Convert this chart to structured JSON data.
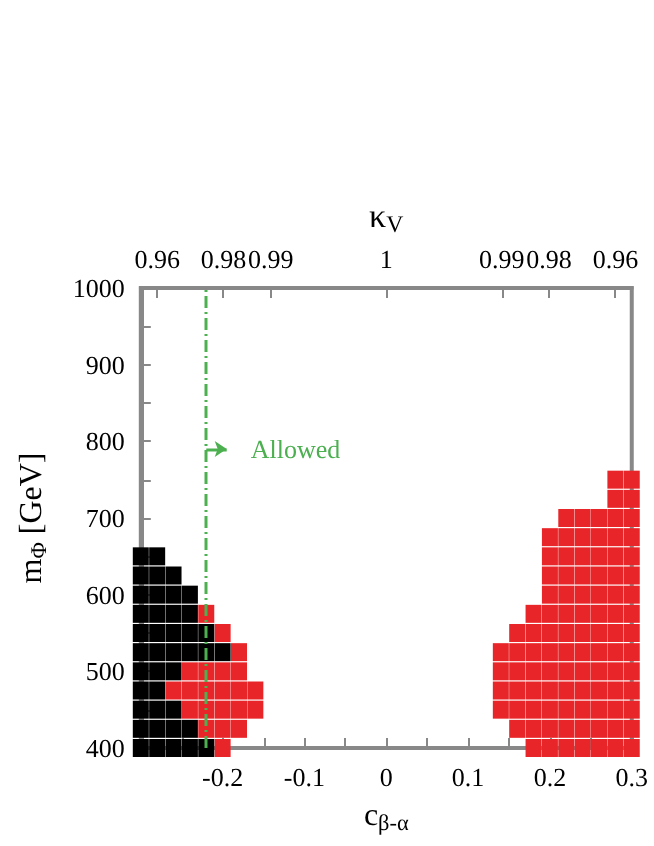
{
  "chart_data": {
    "type": "scatter",
    "xlabel": "c$_{β-α}$",
    "ylabel": "m$_{Φ}$ [GeV]",
    "x2label": "κ$_{V}$",
    "xlim": [
      -0.3,
      0.3
    ],
    "ylim": [
      400,
      1000
    ],
    "xticks": [
      {
        "value": -0.3,
        "label": null
      },
      {
        "value": -0.25,
        "label": null
      },
      -0.2,
      {
        "value": -0.15,
        "label": null
      },
      -0.1,
      {
        "value": -0.05,
        "label": null
      },
      0,
      {
        "value": 0.05,
        "label": null
      },
      0.1,
      {
        "value": 0.15,
        "label": null
      },
      0.2,
      {
        "value": 0.25,
        "label": null
      },
      0.3
    ],
    "yticks": [
      400,
      {
        "value": 450,
        "label": null
      },
      500,
      {
        "value": 550,
        "label": null
      },
      600,
      {
        "value": 650,
        "label": null
      },
      700,
      {
        "value": 750,
        "label": null
      },
      800,
      {
        "value": 850,
        "label": null
      },
      900,
      {
        "value": 950,
        "label": null
      },
      1000
    ],
    "marker": "square",
    "ref_lines": [
      {
        "axis": "x",
        "value": -0.22,
        "label": null,
        "color": "#4caf50",
        "line_style": "dashed"
      }
    ],
    "annotations": [
      {
        "text": "Allowed",
        "x": -0.22,
        "y": 790
      },
      "0.96",
      "0.98",
      "0.99",
      "1",
      "0.99",
      "0.98",
      "0.96"
    ],
    "series": [
      {
        "color": "#e8262a",
        "x": [
          0.18,
          0.2,
          0.22,
          0.24,
          0.26,
          0.28,
          0.3,
          0.16,
          0.18,
          0.2,
          0.22,
          0.24,
          0.26,
          0.28,
          0.3,
          0.14,
          0.16,
          0.18,
          0.2,
          0.22,
          0.24,
          0.26,
          0.28,
          0.3,
          0.14,
          0.16,
          0.18,
          0.2,
          0.22,
          0.24,
          0.26,
          0.28,
          0.3,
          0.14,
          0.16,
          0.18,
          0.2,
          0.22,
          0.24,
          0.26,
          0.28,
          0.3,
          0.14,
          0.16,
          0.18,
          0.2,
          0.22,
          0.24,
          0.26,
          0.28,
          0.3,
          0.16,
          0.18,
          0.2,
          0.22,
          0.24,
          0.26,
          0.28,
          0.3,
          0.18,
          0.2,
          0.22,
          0.24,
          0.26,
          0.28,
          0.3,
          0.2,
          0.22,
          0.24,
          0.26,
          0.28,
          0.3,
          0.2,
          0.22,
          0.24,
          0.26,
          0.28,
          0.3,
          0.2,
          0.22,
          0.24,
          0.26,
          0.28,
          0.3,
          0.2,
          0.22,
          0.24,
          0.26,
          0.28,
          0.3,
          0.22,
          0.24,
          0.26,
          0.28,
          0.3,
          0.28,
          0.3,
          0.28,
          0.3,
          -0.2,
          -0.22,
          -0.2,
          -0.18,
          -0.24,
          -0.22,
          -0.2,
          -0.18,
          -0.16,
          -0.26,
          -0.24,
          -0.22,
          -0.2,
          -0.18,
          -0.16,
          -0.24,
          -0.22,
          -0.2,
          -0.18,
          -0.18,
          -0.2,
          -0.22
        ],
        "values": [
          400,
          400,
          400,
          400,
          400,
          400,
          400,
          425,
          425,
          425,
          425,
          425,
          425,
          425,
          425,
          450,
          450,
          450,
          450,
          450,
          450,
          450,
          450,
          450,
          475,
          475,
          475,
          475,
          475,
          475,
          475,
          475,
          475,
          500,
          500,
          500,
          500,
          500,
          500,
          500,
          500,
          500,
          525,
          525,
          525,
          525,
          525,
          525,
          525,
          525,
          525,
          550,
          550,
          550,
          550,
          550,
          550,
          550,
          550,
          575,
          575,
          575,
          575,
          575,
          575,
          575,
          600,
          600,
          600,
          600,
          600,
          600,
          625,
          625,
          625,
          625,
          625,
          625,
          650,
          650,
          650,
          650,
          650,
          650,
          675,
          675,
          675,
          675,
          675,
          675,
          700,
          700,
          700,
          700,
          700,
          725,
          725,
          750,
          750,
          400,
          425,
          425,
          425,
          450,
          450,
          450,
          450,
          450,
          475,
          475,
          475,
          475,
          475,
          475,
          500,
          500,
          500,
          500,
          525,
          550,
          575
        ]
      },
      {
        "color": "#000000",
        "x": [
          -0.3,
          -0.28,
          -0.26,
          -0.24,
          -0.22,
          -0.3,
          -0.28,
          -0.26,
          -0.24,
          -0.3,
          -0.28,
          -0.26,
          -0.3,
          -0.28,
          -0.3,
          -0.28,
          -0.26,
          -0.3,
          -0.28,
          -0.26,
          -0.24,
          -0.22,
          -0.2,
          -0.3,
          -0.28,
          -0.26,
          -0.24,
          -0.22,
          -0.3,
          -0.28,
          -0.26,
          -0.24,
          -0.3,
          -0.28,
          -0.26,
          -0.24,
          -0.3,
          -0.28,
          -0.26,
          -0.3,
          -0.28
        ],
        "values": [
          400,
          400,
          400,
          400,
          400,
          425,
          425,
          425,
          425,
          450,
          450,
          450,
          475,
          475,
          500,
          500,
          500,
          525,
          525,
          525,
          525,
          525,
          525,
          550,
          550,
          550,
          550,
          550,
          575,
          575,
          575,
          575,
          600,
          600,
          600,
          600,
          625,
          625,
          625,
          650,
          650
        ]
      }
    ]
  }
}
